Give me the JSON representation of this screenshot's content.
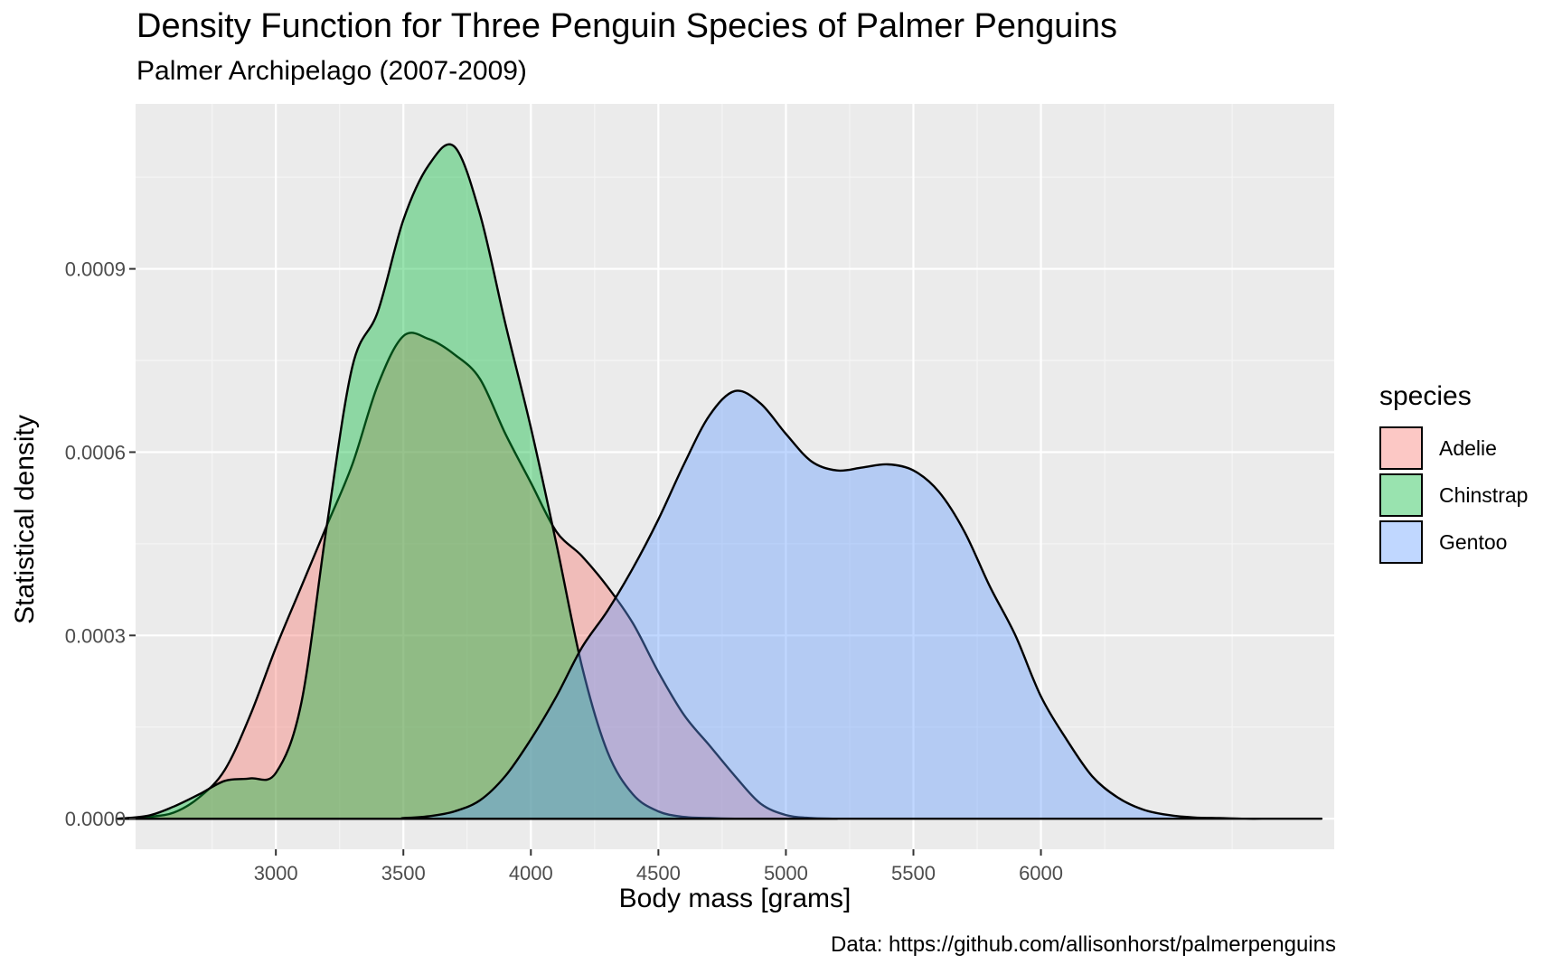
{
  "chart_data": {
    "type": "area",
    "title": "Density Function for Three Penguin Species of Palmer Penguins",
    "subtitle": "Palmer Archipelago (2007-2009)",
    "xlabel": "Body mass [grams]",
    "ylabel": "Statistical density",
    "caption": "Data: https://github.com/allisonhorst/palmerpenguins",
    "xlim": [
      2450,
      7150
    ],
    "ylim": [
      -5e-05,
      0.00117
    ],
    "x_ticks": [
      3000,
      3500,
      4000,
      4500,
      5000,
      5500,
      6000
    ],
    "x_tick_labels": [
      "3000",
      "3500",
      "4000",
      "4500",
      "5000",
      "5500",
      "6000"
    ],
    "y_ticks": [
      0,
      0.0003,
      0.0006,
      0.0009
    ],
    "y_tick_labels": [
      "0.0000",
      "0.0003",
      "0.0006",
      "0.0009"
    ],
    "grid": true,
    "legend_title": "species",
    "legend_position": "right",
    "series": [
      {
        "name": "Adelie",
        "color": "#F8766D",
        "x": [
          2380,
          2500,
          2600,
          2700,
          2800,
          2900,
          3000,
          3100,
          3200,
          3300,
          3400,
          3500,
          3600,
          3700,
          3800,
          3900,
          4000,
          4100,
          4200,
          4300,
          4400,
          4500,
          4600,
          4700,
          4800,
          4900,
          5000,
          5100,
          5200
        ],
        "y": [
          0,
          3e-06,
          1e-05,
          3.5e-05,
          8e-05,
          0.00017,
          0.00028,
          0.00038,
          0.00048,
          0.00058,
          0.00071,
          0.00079,
          0.000785,
          0.00076,
          0.00072,
          0.00063,
          0.00055,
          0.00047,
          0.00043,
          0.00038,
          0.00032,
          0.00024,
          0.00017,
          0.00012,
          7e-05,
          2.5e-05,
          6e-06,
          1e-06,
          0
        ]
      },
      {
        "name": "Chinstrap",
        "color": "#00BA38",
        "x": [
          2380,
          2500,
          2600,
          2700,
          2800,
          2900,
          3000,
          3100,
          3200,
          3300,
          3400,
          3500,
          3600,
          3700,
          3800,
          3900,
          4000,
          4100,
          4200,
          4300,
          4400,
          4500,
          4600,
          4700,
          4800,
          4900,
          5000,
          5100,
          5200
        ],
        "y": [
          0,
          5e-06,
          2e-05,
          4e-05,
          6.2e-05,
          6.6e-05,
          7.5e-05,
          0.00019,
          0.00048,
          0.00074,
          0.00083,
          0.00098,
          0.00107,
          0.0011,
          0.00099,
          0.00081,
          0.00064,
          0.00045,
          0.00025,
          0.00011,
          4e-05,
          1.2e-05,
          3e-06,
          1e-06,
          0,
          0,
          0,
          0,
          0
        ]
      },
      {
        "name": "Gentoo",
        "color": "#619CFF",
        "x": [
          2380,
          3400,
          3500,
          3600,
          3700,
          3800,
          3900,
          4000,
          4100,
          4200,
          4300,
          4400,
          4500,
          4600,
          4700,
          4800,
          4900,
          5000,
          5100,
          5200,
          5300,
          5400,
          5500,
          5600,
          5700,
          5800,
          5900,
          6000,
          6100,
          6200,
          6300,
          6400,
          6500,
          6600,
          6700,
          6800,
          6900,
          7000,
          7100
        ],
        "y": [
          0,
          0,
          1e-06,
          4e-06,
          1.2e-05,
          3e-05,
          7e-05,
          0.00013,
          0.0002,
          0.00028,
          0.00034,
          0.00041,
          0.00049,
          0.00058,
          0.00066,
          0.0007,
          0.00068,
          0.00063,
          0.000585,
          0.00057,
          0.000575,
          0.00058,
          0.00057,
          0.000535,
          0.00047,
          0.00038,
          0.0003,
          0.0002,
          0.00013,
          7e-05,
          3.5e-05,
          1.5e-05,
          6e-06,
          2e-06,
          1e-06,
          0,
          0,
          0,
          0
        ]
      }
    ]
  },
  "colors": {
    "panel_background": "#EBEBEB",
    "grid_major": "#FFFFFF",
    "grid_minor": "#F5F5F5",
    "fill_opacity": 0.4,
    "outline": "#000000"
  }
}
